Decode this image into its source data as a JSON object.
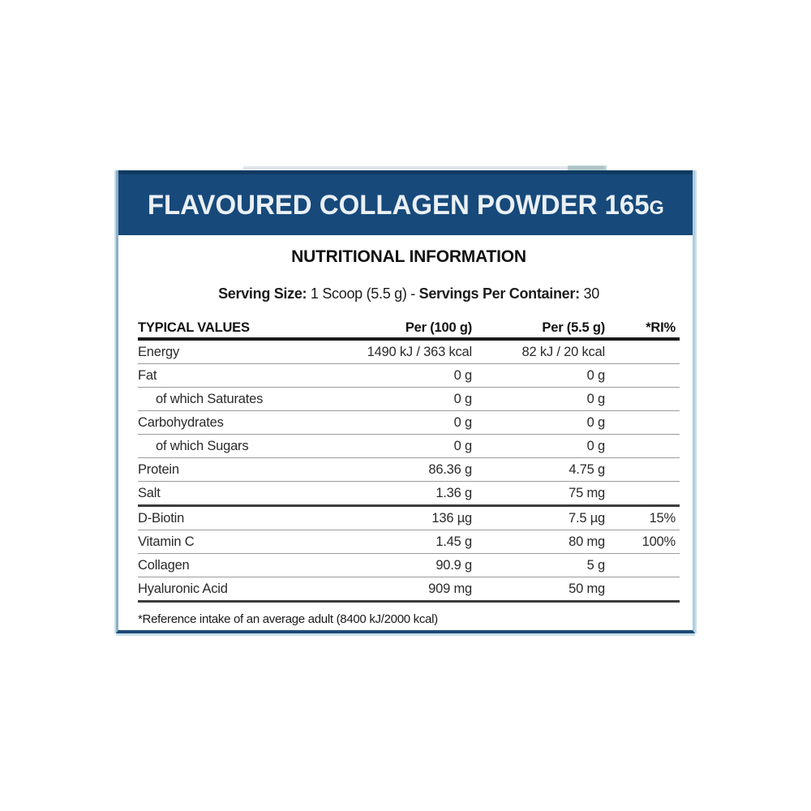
{
  "header": {
    "title_main": "FLAVOURED COLLAGEN POWDER 165",
    "title_unit": "G",
    "title_full": "FLAVOURED COLLAGEN POWDER 165G"
  },
  "section_title": "NUTRITIONAL INFORMATION",
  "serving_line": {
    "parts": [
      {
        "text": "Serving Size:",
        "bold": true
      },
      {
        "text": " 1 Scoop (5.5 g) - ",
        "bold": false
      },
      {
        "text": "Servings Per Container:",
        "bold": true
      },
      {
        "text": " 30",
        "bold": false
      }
    ]
  },
  "table": {
    "columns": [
      "TYPICAL VALUES",
      "Per (100 g)",
      "Per (5.5 g)",
      "*RI%"
    ],
    "rows": [
      {
        "name": "Energy",
        "indent": false,
        "per_100g": "1490 kJ / 363 kcal",
        "per_serving": "82 kJ / 20 kcal",
        "ri": "",
        "divider": "thin"
      },
      {
        "name": "Fat",
        "indent": false,
        "per_100g": "0 g",
        "per_serving": "0 g",
        "ri": "",
        "divider": "thin"
      },
      {
        "name": "of which Saturates",
        "indent": true,
        "per_100g": "0 g",
        "per_serving": "0 g",
        "ri": "",
        "divider": "thin"
      },
      {
        "name": "Carbohydrates",
        "indent": false,
        "per_100g": "0 g",
        "per_serving": "0 g",
        "ri": "",
        "divider": "thin"
      },
      {
        "name": "of which Sugars",
        "indent": true,
        "per_100g": "0 g",
        "per_serving": "0 g",
        "ri": "",
        "divider": "thin"
      },
      {
        "name": "Protein",
        "indent": false,
        "per_100g": "86.36 g",
        "per_serving": "4.75 g",
        "ri": "",
        "divider": "thin"
      },
      {
        "name": "Salt",
        "indent": false,
        "per_100g": "1.36 g",
        "per_serving": "75 mg",
        "ri": "",
        "divider": "thick"
      },
      {
        "name": "D-Biotin",
        "indent": false,
        "per_100g": "136 µg",
        "per_serving": "7.5 µg",
        "ri": "15%",
        "divider": "thin"
      },
      {
        "name": "Vitamin C",
        "indent": false,
        "per_100g": "1.45 g",
        "per_serving": "80 mg",
        "ri": "100%",
        "divider": "thin"
      },
      {
        "name": "Collagen",
        "indent": false,
        "per_100g": "90.9 g",
        "per_serving": "5 g",
        "ri": "",
        "divider": "thin"
      },
      {
        "name": "Hyaluronic Acid",
        "indent": false,
        "per_100g": "909 mg",
        "per_serving": "50 mg",
        "ri": "",
        "divider": "thick"
      }
    ]
  },
  "footnote": "*Reference intake of an average adult (8400 kJ/2000 kcal)",
  "colors": {
    "header_bg": "#17497B",
    "header_bg_dark": "#0F3A62",
    "title_text": "#EAF0F4",
    "border_light": "#C9DEEA",
    "border_light2": "#AFCCDE",
    "border_mid": "#8FAFC4",
    "border_bottom": "#1D4A75",
    "rule_thin": "#9B9B9B",
    "rule_medium": "#3C3C3C",
    "rule_thick": "#1A1A1A"
  }
}
